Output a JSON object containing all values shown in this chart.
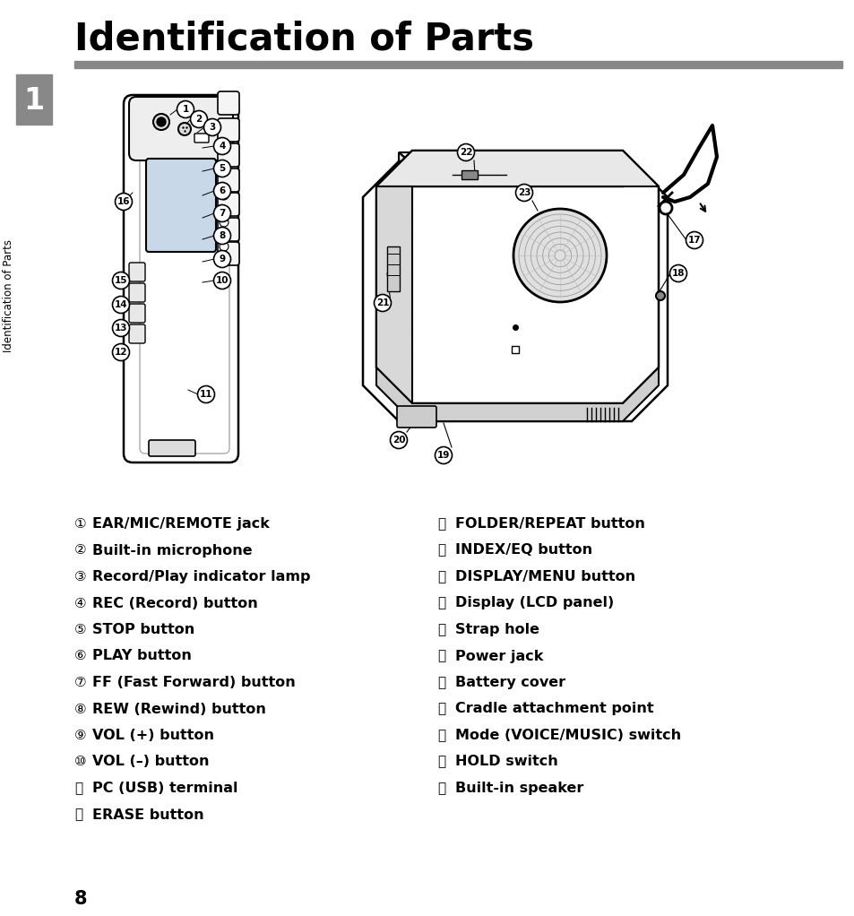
{
  "title": "Identification of Parts",
  "title_fontsize": 30,
  "separator_color": "#888888",
  "sidebar_number": "1",
  "sidebar_text": "Identification of Parts",
  "background_color": "#ffffff",
  "left_items": [
    [
      "①",
      "EAR/MIC/REMOTE jack"
    ],
    [
      "②",
      "Built-in microphone"
    ],
    [
      "③",
      "Record/Play indicator lamp"
    ],
    [
      "④",
      "REC (Record) button"
    ],
    [
      "⑤",
      "STOP button"
    ],
    [
      "⑥",
      "PLAY button"
    ],
    [
      "⑦",
      "FF (Fast Forward) button"
    ],
    [
      "⑧",
      "REW (Rewind) button"
    ],
    [
      "⑨",
      "VOL (+) button"
    ],
    [
      "⑩",
      "VOL (–) button"
    ],
    [
      "⑪",
      "PC (USB) terminal"
    ],
    [
      "⑫",
      "ERASE button"
    ]
  ],
  "right_items": [
    [
      "⑬",
      "FOLDER/REPEAT button"
    ],
    [
      "⑭",
      "INDEX/EQ button"
    ],
    [
      "⑮",
      "DISPLAY/MENU button"
    ],
    [
      "⑯",
      "Display (LCD panel)"
    ],
    [
      "⑰",
      "Strap hole"
    ],
    [
      "⑱",
      "Power jack"
    ],
    [
      "⑲",
      "Battery cover"
    ],
    [
      "⑳",
      "Cradle attachment point"
    ],
    [
      "⑴",
      "Mode (VOICE/MUSIC) switch"
    ],
    [
      "⑵",
      "HOLD switch"
    ],
    [
      "⑶",
      "Built-in speaker"
    ]
  ],
  "page_number": "8",
  "text_fontsize": 11.5,
  "page_num_fontsize": 15
}
